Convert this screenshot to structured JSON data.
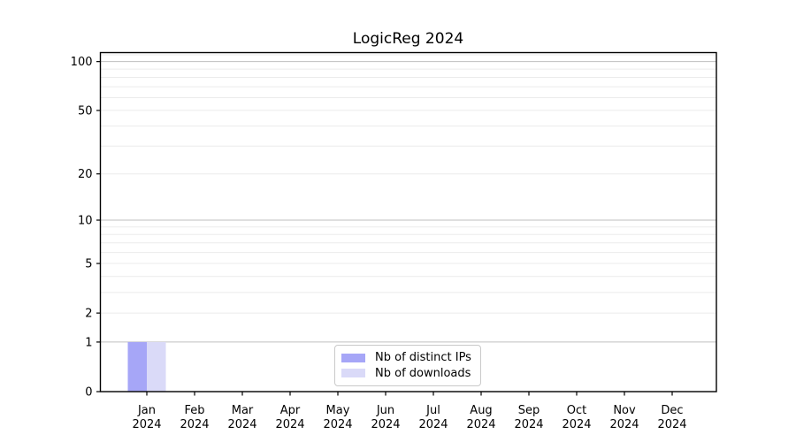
{
  "chart_data": {
    "type": "bar",
    "title": "LogicReg 2024",
    "categories": [
      "Jan",
      "Feb",
      "Mar",
      "Apr",
      "May",
      "Jun",
      "Jul",
      "Aug",
      "Sep",
      "Oct",
      "Nov",
      "Dec"
    ],
    "year": "2024",
    "series": [
      {
        "name": "Nb of distinct IPs",
        "color": "#a6a6f7",
        "values": [
          1,
          0,
          0,
          0,
          0,
          0,
          0,
          0,
          0,
          0,
          0,
          0
        ]
      },
      {
        "name": "Nb of downloads",
        "color": "#dadaf8",
        "values": [
          1,
          0,
          0,
          0,
          0,
          0,
          0,
          0,
          0,
          0,
          0,
          0
        ]
      }
    ],
    "xlabel": "",
    "ylabel": "",
    "scale": "log1p",
    "ylim": [
      0,
      113.5
    ],
    "yticks": [
      0,
      1,
      2,
      5,
      10,
      20,
      50,
      100
    ],
    "major_grid_values": [
      1,
      10,
      100
    ],
    "minor_grid_values": [
      2,
      3,
      4,
      5,
      6,
      7,
      8,
      9,
      20,
      30,
      40,
      50,
      60,
      70,
      80,
      90,
      110
    ],
    "grid": "horizontal",
    "legend_position": "lower center",
    "colors": {
      "major_grid": "#bfbfbf",
      "minor_grid": "#ebebeb",
      "axis": "#000000",
      "background": "#ffffff"
    }
  }
}
